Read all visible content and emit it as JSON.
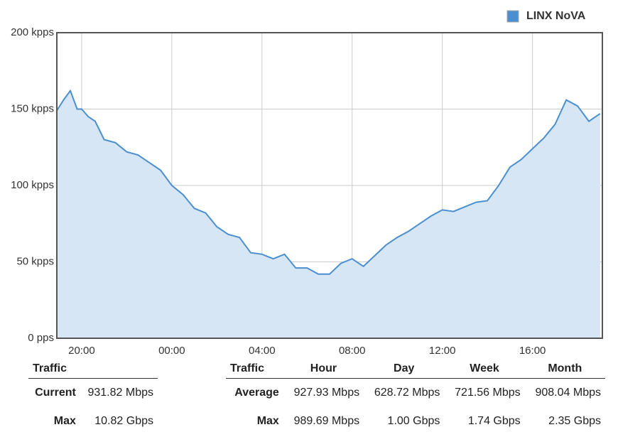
{
  "chart_data": {
    "type": "area",
    "legend_position": "top-right",
    "x": [
      18.9,
      19.2,
      19.5,
      19.8,
      20.0,
      20.3,
      20.6,
      21.0,
      21.5,
      22.0,
      22.5,
      23.0,
      23.5,
      24.0,
      24.5,
      25.0,
      25.5,
      26.0,
      26.5,
      27.0,
      27.5,
      28.0,
      28.5,
      29.0,
      29.5,
      30.0,
      30.5,
      31.0,
      31.5,
      32.0,
      32.5,
      33.0,
      33.5,
      34.0,
      34.5,
      35.0,
      35.5,
      36.0,
      36.5,
      37.0,
      37.5,
      38.0,
      38.5,
      39.0,
      39.5,
      40.0,
      40.5,
      41.0,
      41.5,
      42.0,
      42.5,
      43.0
    ],
    "series": [
      {
        "name": "LINX NoVA",
        "color": "#4a8fd0",
        "fill": "#d6e6f4",
        "values": [
          149,
          156,
          162,
          150,
          150,
          145,
          142,
          130,
          128,
          122,
          120,
          115,
          110,
          100,
          94,
          85,
          82,
          73,
          68,
          66,
          56,
          55,
          52,
          55,
          46,
          46,
          42,
          42,
          49,
          52,
          47,
          54,
          61,
          66,
          70,
          75,
          80,
          84,
          83,
          86,
          89,
          90,
          100,
          112,
          117,
          124,
          131,
          140,
          156,
          152,
          142,
          147
        ]
      }
    ],
    "xlim": [
      18.9,
      43.1
    ],
    "xticks": [
      {
        "value": 20,
        "label": "20:00"
      },
      {
        "value": 24,
        "label": "00:00"
      },
      {
        "value": 28,
        "label": "04:00"
      },
      {
        "value": 32,
        "label": "08:00"
      },
      {
        "value": 36,
        "label": "12:00"
      },
      {
        "value": 40,
        "label": "16:00"
      }
    ],
    "ylim": [
      0,
      200
    ],
    "yticks": [
      {
        "value": 0,
        "label": "0 pps"
      },
      {
        "value": 50,
        "label": "50 kpps"
      },
      {
        "value": 100,
        "label": "100 kpps"
      },
      {
        "value": 150,
        "label": "150 kpps"
      },
      {
        "value": 200,
        "label": "200 kpps"
      }
    ],
    "grid": true
  },
  "summary_left": {
    "header": "Traffic",
    "rows": [
      [
        "Current",
        "931.82 Mbps"
      ],
      [
        "Max",
        "10.82 Gbps"
      ]
    ]
  },
  "summary_right": {
    "headers": [
      "Traffic",
      "Hour",
      "Day",
      "Week",
      "Month"
    ],
    "rows": [
      [
        "Average",
        "927.93 Mbps",
        "628.72 Mbps",
        "721.56 Mbps",
        "908.04 Mbps"
      ],
      [
        "Max",
        "989.69 Mbps",
        "1.00 Gbps",
        "1.74 Gbps",
        "2.35 Gbps"
      ]
    ]
  }
}
